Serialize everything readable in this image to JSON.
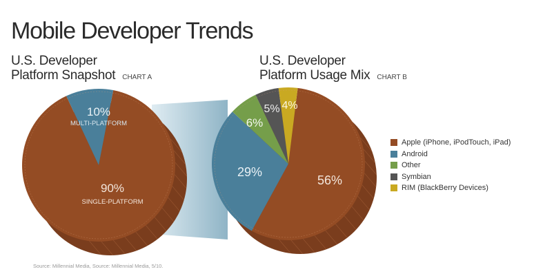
{
  "header": {
    "title": "Mobile Developer Trends"
  },
  "colors": {
    "apple": "#944c24",
    "android": "#4a7f9a",
    "other": "#759e4a",
    "symbian": "#555555",
    "rim": "#c9a922",
    "connector": "#a9c8d6",
    "side": "#7a3d1d"
  },
  "chart_data": [
    {
      "type": "pie",
      "title": "U.S. Developer Platform Snapshot",
      "title_line1": "U.S. Developer",
      "title_line2": "Platform Snapshot",
      "tag": "CHART A",
      "slices": [
        {
          "label": "SINGLE-PLATFORM",
          "value": 90,
          "value_label": "90%",
          "color": "#944c24"
        },
        {
          "label": "MULTI-PLATFORM",
          "value": 10,
          "value_label": "10%",
          "color": "#4a7f9a"
        }
      ]
    },
    {
      "type": "pie",
      "title": "U.S. Developer Platform Usage Mix",
      "title_line1": "U.S. Developer",
      "title_line2": "Platform Usage Mix",
      "tag": "CHART B",
      "legend_position": "right",
      "slices": [
        {
          "label": "Apple (iPhone, iPodTouch, iPad)",
          "value": 56,
          "value_label": "56%",
          "color": "#944c24"
        },
        {
          "label": "Android",
          "value": 29,
          "value_label": "29%",
          "color": "#4a7f9a"
        },
        {
          "label": "Other",
          "value": 6,
          "value_label": "6%",
          "color": "#759e4a"
        },
        {
          "label": "Symbian",
          "value": 5,
          "value_label": "5%",
          "color": "#555555"
        },
        {
          "label": "RIM (BlackBerry Devices)",
          "value": 4,
          "value_label": "4%",
          "color": "#c9a922"
        }
      ]
    }
  ],
  "footer": {
    "source": "Source: Millennial Media, Source: Millennial Media, 5/10."
  }
}
